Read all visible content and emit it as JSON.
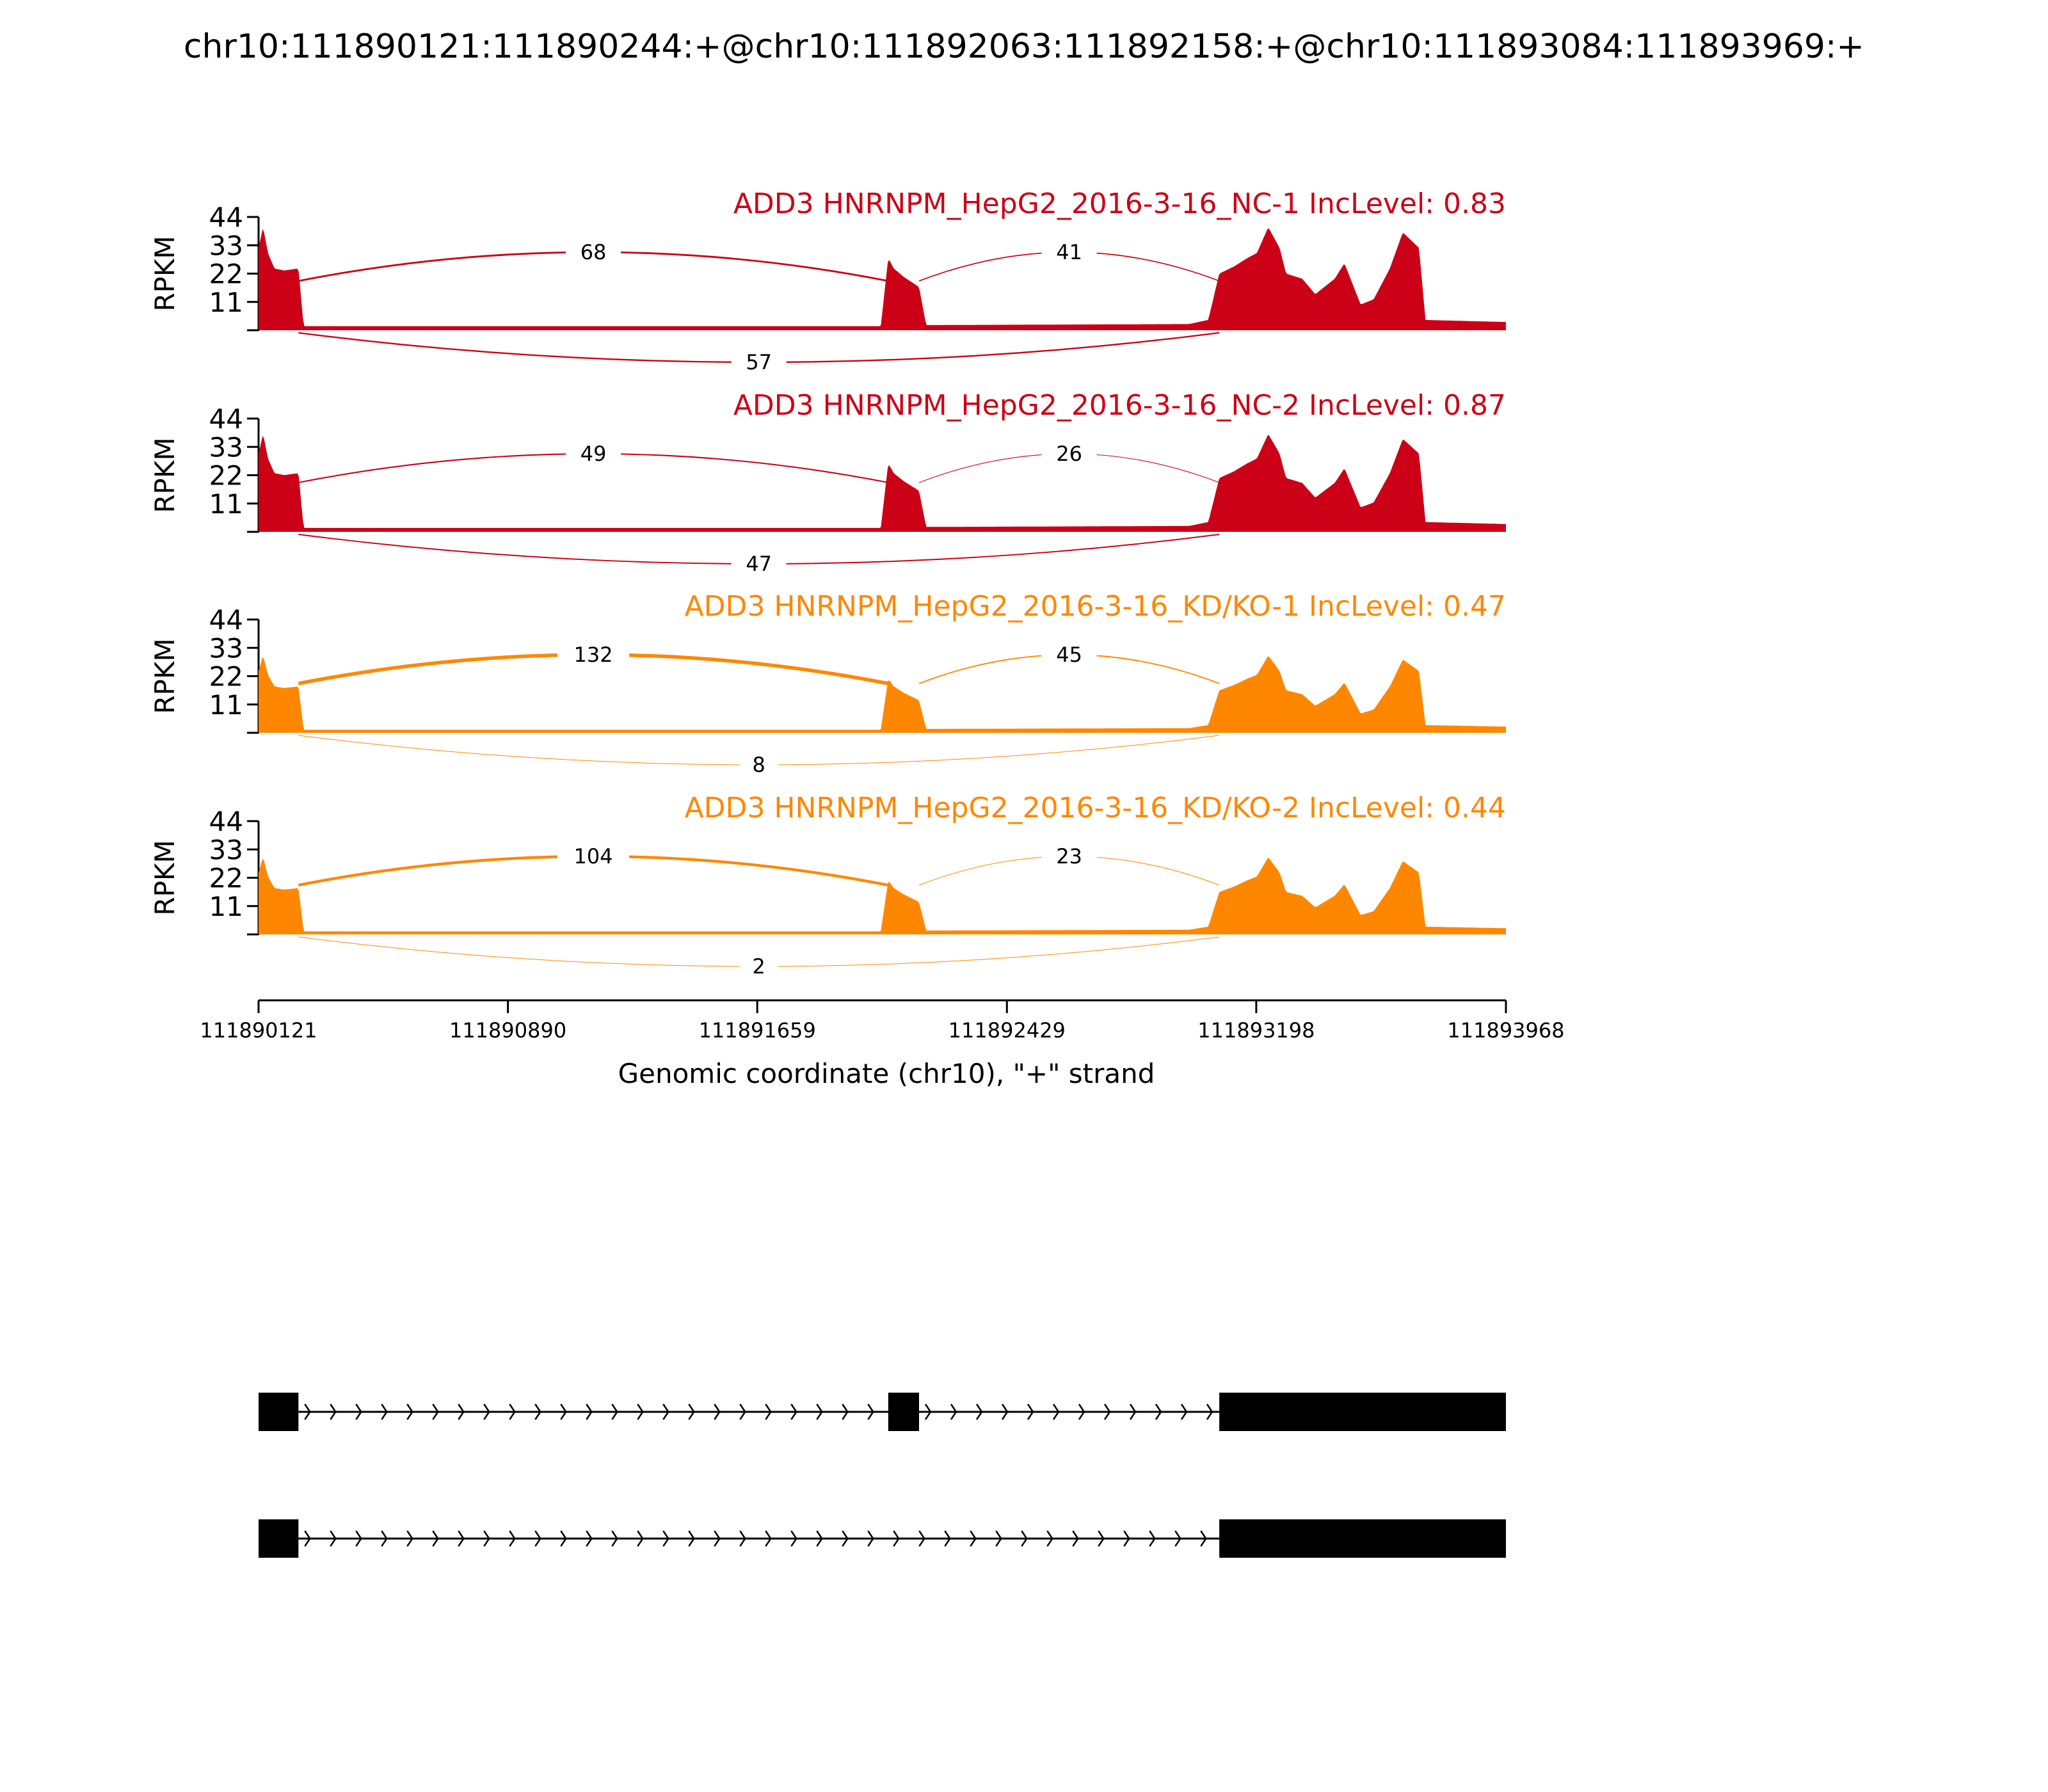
{
  "chart_data": {
    "type": "area",
    "title": "chr10:111890121:111890244:+@chr10:111892063:111892158:+@chr10:111893084:111893969:+",
    "xlabel": "Genomic coordinate (chr10), \"+\" strand",
    "ylabel": "RPKM",
    "xlim": [
      111890121,
      111893968
    ],
    "ylim": [
      0,
      44
    ],
    "x_ticks": [
      "111890121",
      "111890890",
      "111891659",
      "111892429",
      "111893198",
      "111893968"
    ],
    "y_ticks": [
      "11",
      "22",
      "33",
      "44"
    ],
    "exons": [
      [
        111890121,
        111890244
      ],
      [
        111892063,
        111892158
      ],
      [
        111893084,
        111893969
      ]
    ],
    "coverage_profile_points": [
      [
        111890121,
        0.8
      ],
      [
        111890135,
        1.0
      ],
      [
        111890150,
        0.75
      ],
      [
        111890170,
        0.6
      ],
      [
        111890200,
        0.58
      ],
      [
        111890244,
        0.6
      ],
      [
        111890260,
        0.04
      ],
      [
        111892040,
        0.04
      ],
      [
        111892063,
        0.7
      ],
      [
        111892080,
        0.6
      ],
      [
        111892110,
        0.52
      ],
      [
        111892158,
        0.42
      ],
      [
        111892180,
        0.05
      ],
      [
        111892990,
        0.06
      ],
      [
        111893050,
        0.1
      ],
      [
        111893084,
        0.55
      ],
      [
        111893130,
        0.62
      ],
      [
        111893170,
        0.7
      ],
      [
        111893200,
        0.75
      ],
      [
        111893235,
        1.0
      ],
      [
        111893270,
        0.8
      ],
      [
        111893290,
        0.55
      ],
      [
        111893340,
        0.5
      ],
      [
        111893380,
        0.35
      ],
      [
        111893440,
        0.5
      ],
      [
        111893470,
        0.65
      ],
      [
        111893520,
        0.25
      ],
      [
        111893560,
        0.3
      ],
      [
        111893610,
        0.6
      ],
      [
        111893650,
        0.95
      ],
      [
        111893700,
        0.8
      ],
      [
        111893720,
        0.1
      ],
      [
        111893968,
        0.08
      ]
    ],
    "series": [
      {
        "name": "ADD3 HNRNPM_HepG2_2016-3-16_NC-1 IncLevel: 0.83",
        "color": "#cc0016",
        "peak": 40,
        "junctions": [
          {
            "from": 111890244,
            "to": 111892063,
            "count": "68",
            "side": "above"
          },
          {
            "from": 111892158,
            "to": 111893084,
            "count": "41",
            "side": "above"
          },
          {
            "from": 111890244,
            "to": 111893084,
            "count": "57",
            "side": "below"
          }
        ]
      },
      {
        "name": "ADD3 HNRNPM_HepG2_2016-3-16_NC-2 IncLevel: 0.87",
        "color": "#cc0016",
        "peak": 38,
        "junctions": [
          {
            "from": 111890244,
            "to": 111892063,
            "count": "49",
            "side": "above"
          },
          {
            "from": 111892158,
            "to": 111893084,
            "count": "26",
            "side": "above"
          },
          {
            "from": 111890244,
            "to": 111893084,
            "count": "47",
            "side": "below"
          }
        ]
      },
      {
        "name": "ADD3 HNRNPM_HepG2_2016-3-16_KD/KO-1 IncLevel: 0.47",
        "color": "#ff8700",
        "peak": 30,
        "junctions": [
          {
            "from": 111890244,
            "to": 111892063,
            "count": "132",
            "side": "above"
          },
          {
            "from": 111892158,
            "to": 111893084,
            "count": "45",
            "side": "above"
          },
          {
            "from": 111890244,
            "to": 111893084,
            "count": "8",
            "side": "below"
          }
        ]
      },
      {
        "name": "ADD3 HNRNPM_HepG2_2016-3-16_KD/KO-2 IncLevel: 0.44",
        "color": "#ff8700",
        "peak": 30,
        "junctions": [
          {
            "from": 111890244,
            "to": 111892063,
            "count": "104",
            "side": "above"
          },
          {
            "from": 111892158,
            "to": 111893084,
            "count": "23",
            "side": "above"
          },
          {
            "from": 111890244,
            "to": 111893084,
            "count": "2",
            "side": "below"
          }
        ]
      }
    ],
    "isoforms": [
      {
        "exons": [
          [
            111890121,
            111890244
          ],
          [
            111892063,
            111892158
          ],
          [
            111893084,
            111893969
          ]
        ]
      },
      {
        "exons": [
          [
            111890121,
            111890244
          ],
          [
            111893084,
            111893969
          ]
        ]
      }
    ]
  }
}
